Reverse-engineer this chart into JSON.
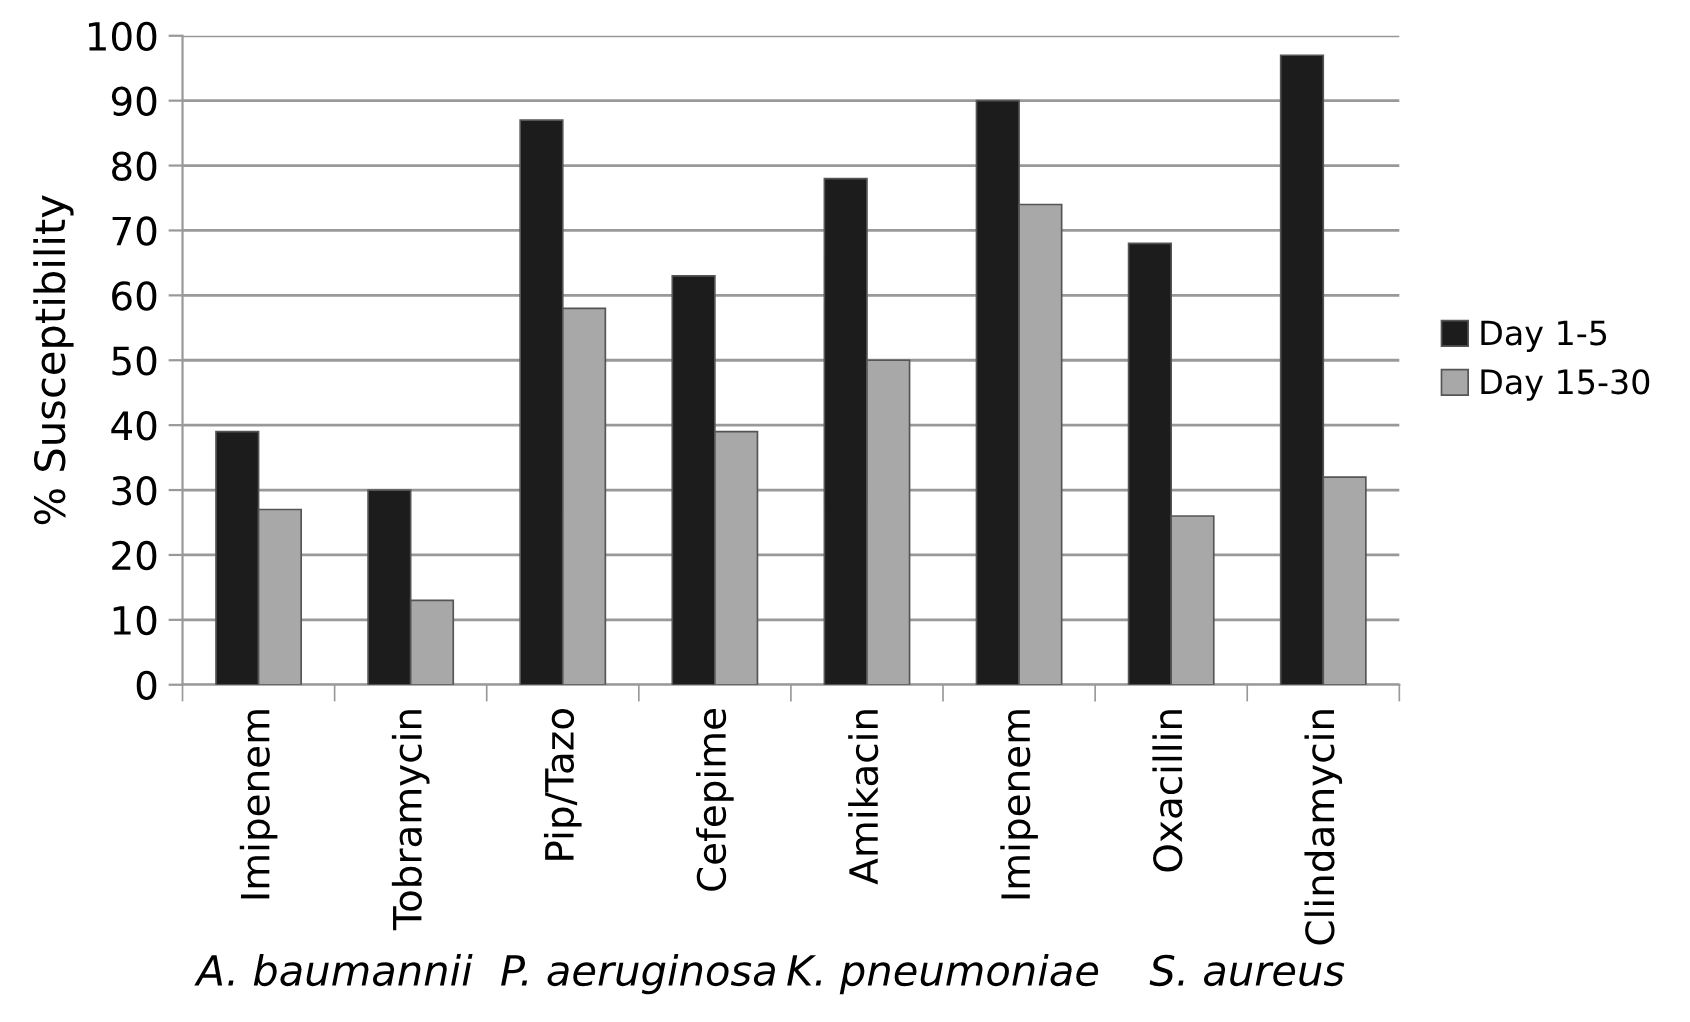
{
  "chart_data": {
    "type": "bar",
    "ylabel": "% Susceptibility",
    "categories": [
      "Imipenem",
      "Tobramycin",
      "Pip/Tazo",
      "Cefepime",
      "Amikacin",
      "Imipenem",
      "Oxacillin",
      "Clindamycin"
    ],
    "series": [
      {
        "name": "Day 1-5",
        "color": "#1c1c1c",
        "values": [
          39,
          30,
          87,
          63,
          78,
          90,
          68,
          97
        ]
      },
      {
        "name": "Day 15-30",
        "color": "#a8a8a8",
        "values": [
          27,
          13,
          58,
          39,
          50,
          74,
          26,
          32
        ]
      }
    ],
    "annotations": [
      "A. baumannii",
      "P. aeruginosa",
      "K. pneumoniae",
      "S. aureus"
    ],
    "ylim": [
      0,
      100
    ],
    "yticks": [
      0,
      10,
      20,
      30,
      40,
      50,
      60,
      70,
      80,
      90,
      100
    ],
    "grid": "y",
    "legend": "right"
  }
}
